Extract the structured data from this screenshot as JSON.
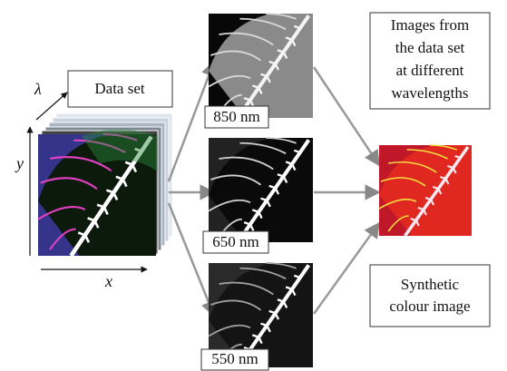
{
  "data_set": {
    "label": "Data set",
    "axes": {
      "wavelength": "λ",
      "y": "y",
      "x": "x"
    }
  },
  "bands": [
    {
      "label": "850 nm"
    },
    {
      "label": "650 nm"
    },
    {
      "label": "550 nm"
    }
  ],
  "band_note": {
    "lines": [
      "Images from",
      "the data set",
      "at different",
      "wavelengths"
    ]
  },
  "result_note": {
    "lines": [
      "Synthetic",
      "colour image"
    ]
  }
}
